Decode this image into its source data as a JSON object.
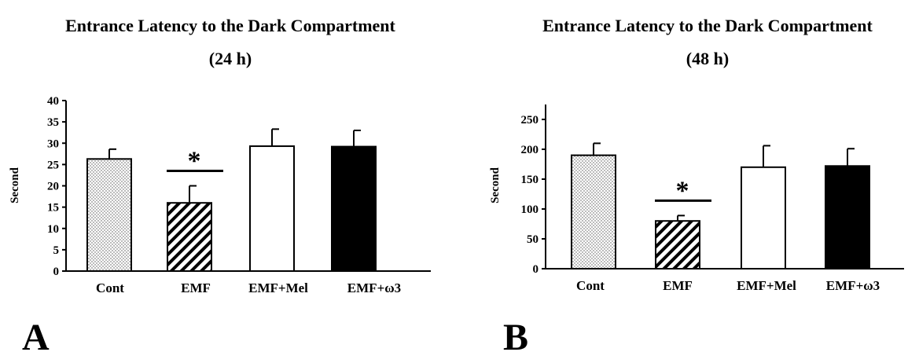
{
  "chart_data": [
    {
      "type": "bar",
      "panel_label": "A",
      "title": "Entrance Latency to the Dark Compartment",
      "subtitle": "(24 h)",
      "ylabel": "Second",
      "xlabel": "",
      "ylim": [
        0,
        40
      ],
      "yticks": [
        "0",
        "5",
        "10",
        "15",
        "20",
        "25",
        "30",
        "35",
        "40"
      ],
      "ytick_values": [
        0,
        5,
        10,
        15,
        20,
        25,
        30,
        35,
        40
      ],
      "categories": [
        "Cont",
        "EMF",
        "EMF+Mel",
        "EMF+ω3"
      ],
      "values": [
        26.3,
        16,
        29.3,
        29.2
      ],
      "errors": [
        2.3,
        4,
        4,
        3.8
      ],
      "fills": [
        "dots",
        "hatch",
        "white",
        "black"
      ],
      "significance": [
        {
          "index": 1,
          "label": "*"
        }
      ],
      "grid": false
    },
    {
      "type": "bar",
      "panel_label": "B",
      "title": "Entrance Latency to the Dark Compartment",
      "subtitle": "(48 h)",
      "ylabel": "Second",
      "xlabel": "",
      "ylim": [
        0,
        275
      ],
      "yticks": [
        "0",
        "50",
        "100",
        "150",
        "200",
        "250"
      ],
      "ytick_values": [
        0,
        50,
        100,
        150,
        200,
        250
      ],
      "categories": [
        "Cont",
        "EMF",
        "EMF+Mel",
        "EMF+ω3"
      ],
      "values": [
        190,
        80,
        170,
        172
      ],
      "errors": [
        20,
        9,
        36,
        29
      ],
      "fills": [
        "dots",
        "hatch",
        "white",
        "black"
      ],
      "significance": [
        {
          "index": 1,
          "label": "*"
        }
      ],
      "grid": false
    }
  ]
}
